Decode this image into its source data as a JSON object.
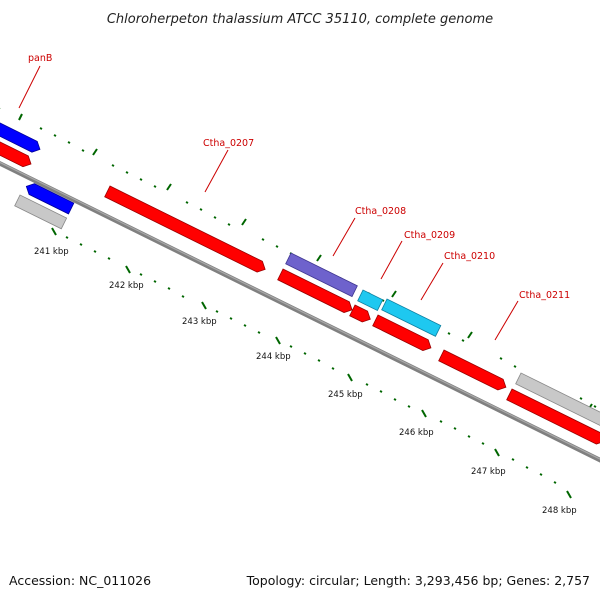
{
  "title": "Chloroherpeton thalassium ATCC 35110, complete genome",
  "footer": {
    "accession": "Accession: NC_011026",
    "summary": "Topology: circular; Length: 3,293,456 bp; Genes: 2,757"
  },
  "colors": {
    "label": "#cc0000",
    "backbone": "#808080",
    "tick": "#006600",
    "forward_cds": "#0000ff",
    "reverse_cds": "#ff0000",
    "cds_variant_purple": "#6e62cc",
    "cds_variant_cyan": "#1ec8f0",
    "other_feature": "#c8c8c8"
  },
  "scale_ticks": [
    {
      "text": "241 kbp"
    },
    {
      "text": "242 kbp"
    },
    {
      "text": "243 kbp"
    },
    {
      "text": "244 kbp"
    },
    {
      "text": "245 kbp"
    },
    {
      "text": "246 kbp"
    },
    {
      "text": "247 kbp"
    },
    {
      "text": "248 kbp"
    }
  ],
  "gene_labels": [
    {
      "text": "panB"
    },
    {
      "text": "Ctha_0207"
    },
    {
      "text": "Ctha_0208"
    },
    {
      "text": "Ctha_0209"
    },
    {
      "text": "Ctha_0210"
    },
    {
      "text": "Ctha_0211"
    }
  ]
}
